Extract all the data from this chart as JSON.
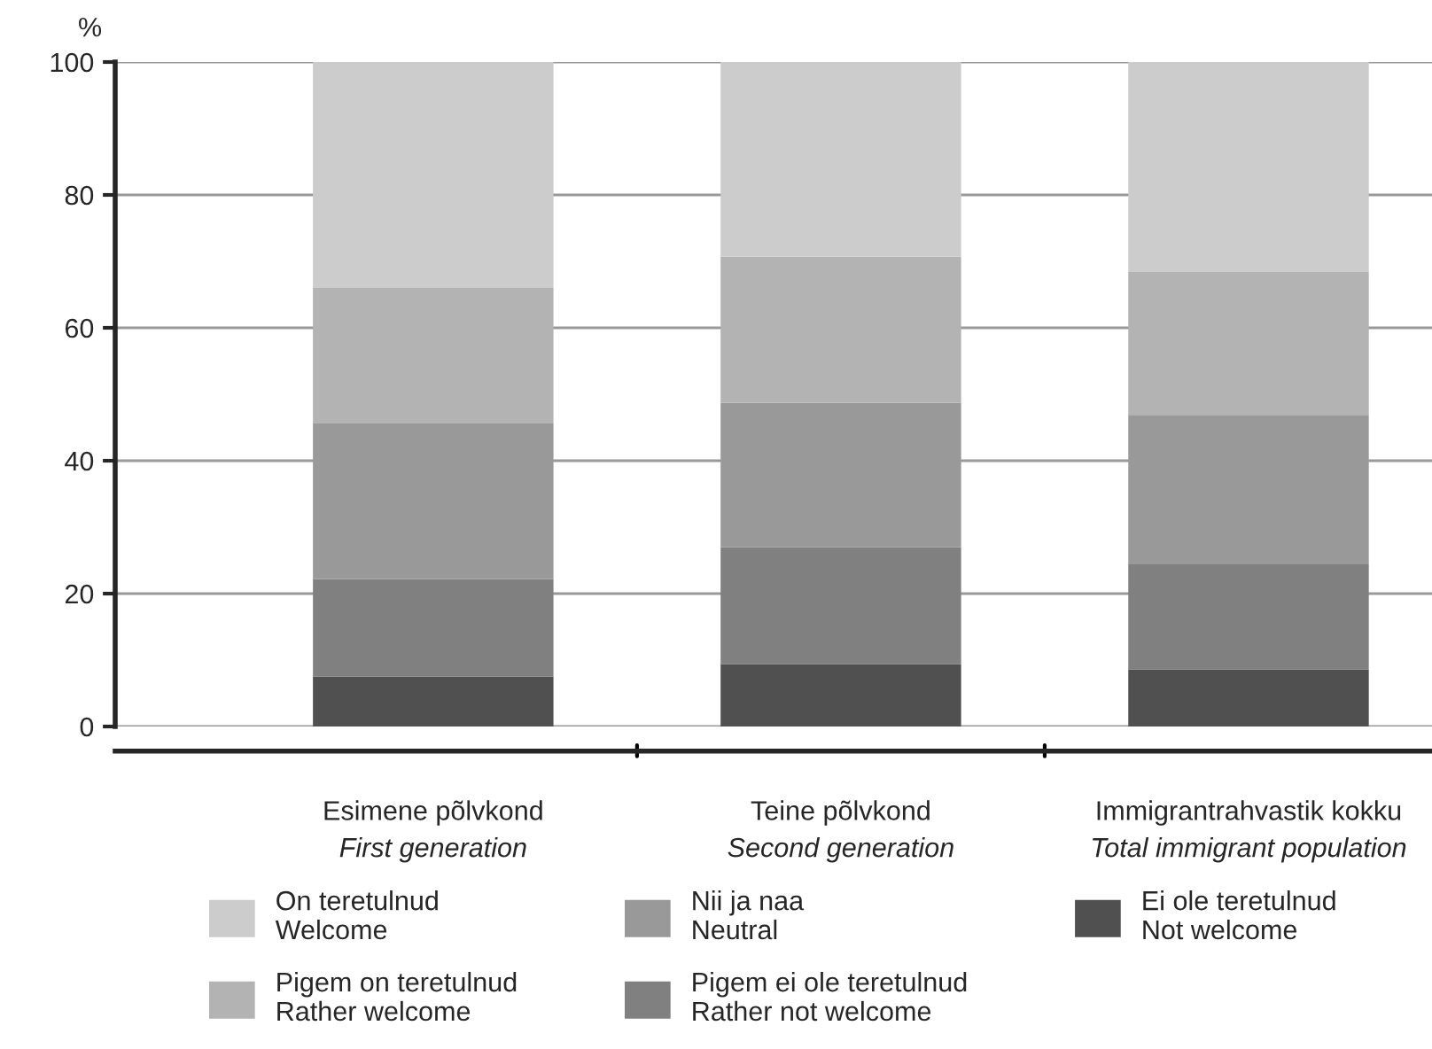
{
  "chart_data": {
    "type": "bar",
    "stacked": true,
    "ylabel": "%",
    "categories": [
      "Esimene põlvkond\nFirst generation",
      "Teine põlvkond\nSecond generation",
      "Immigrantrahvastik kokku\nTotal immigrant population"
    ],
    "series": [
      {
        "name": "Ei ole teretulnud\nNot welcome",
        "color": "#505050",
        "values": [
          7.5,
          9.4,
          8.6
        ]
      },
      {
        "name": "Pigem ei ole teretulnud\nRather not welcome",
        "color": "#808080",
        "values": [
          14.7,
          17.6,
          15.8
        ]
      },
      {
        "name": "Nii ja naa\nNeutral",
        "color": "#999999",
        "values": [
          23.4,
          21.7,
          22.5
        ]
      },
      {
        "name": "Pigem on teretulnud\nRather welcome",
        "color": "#b3b3b3",
        "values": [
          20.4,
          22.0,
          21.5
        ]
      },
      {
        "name": "On teretulnud\nWelcome",
        "color": "#cccccc",
        "values": [
          34.0,
          29.3,
          31.6
        ]
      }
    ],
    "ylim": [
      0,
      100
    ],
    "yticks": [
      0,
      20,
      40,
      60,
      80,
      100
    ],
    "grid": "y",
    "legend": "bottom"
  }
}
